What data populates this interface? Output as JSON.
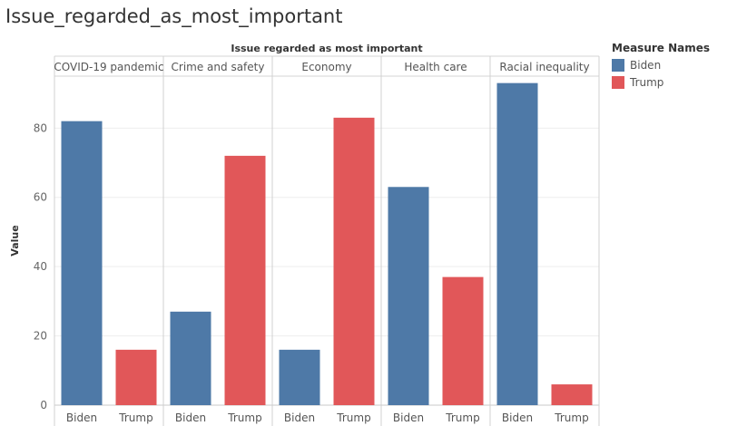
{
  "title": "Issue_regarded_as_most_important",
  "colors": {
    "Biden": "#4e79a7",
    "Trump": "#e15759"
  },
  "legend": {
    "title": "Measure Names",
    "items": [
      {
        "label": "Biden",
        "color": "#4e79a7"
      },
      {
        "label": "Trump",
        "color": "#e15759"
      }
    ]
  },
  "chart_data": {
    "type": "bar",
    "title": "Issue_regarded_as_most_important",
    "header": "Issue regarded as most important",
    "ylabel": "Value",
    "ylim": [
      0,
      95
    ],
    "yticks": [
      0,
      20,
      40,
      60,
      80
    ],
    "categories": [
      "COVID-19 pandemic",
      "Crime and safety",
      "Economy",
      "Health care",
      "Racial inequality"
    ],
    "series": [
      {
        "name": "Biden",
        "values": [
          82,
          27,
          16,
          63,
          93
        ]
      },
      {
        "name": "Trump",
        "values": [
          16,
          72,
          83,
          37,
          6
        ]
      }
    ],
    "grid": true,
    "legend_position": "right"
  }
}
